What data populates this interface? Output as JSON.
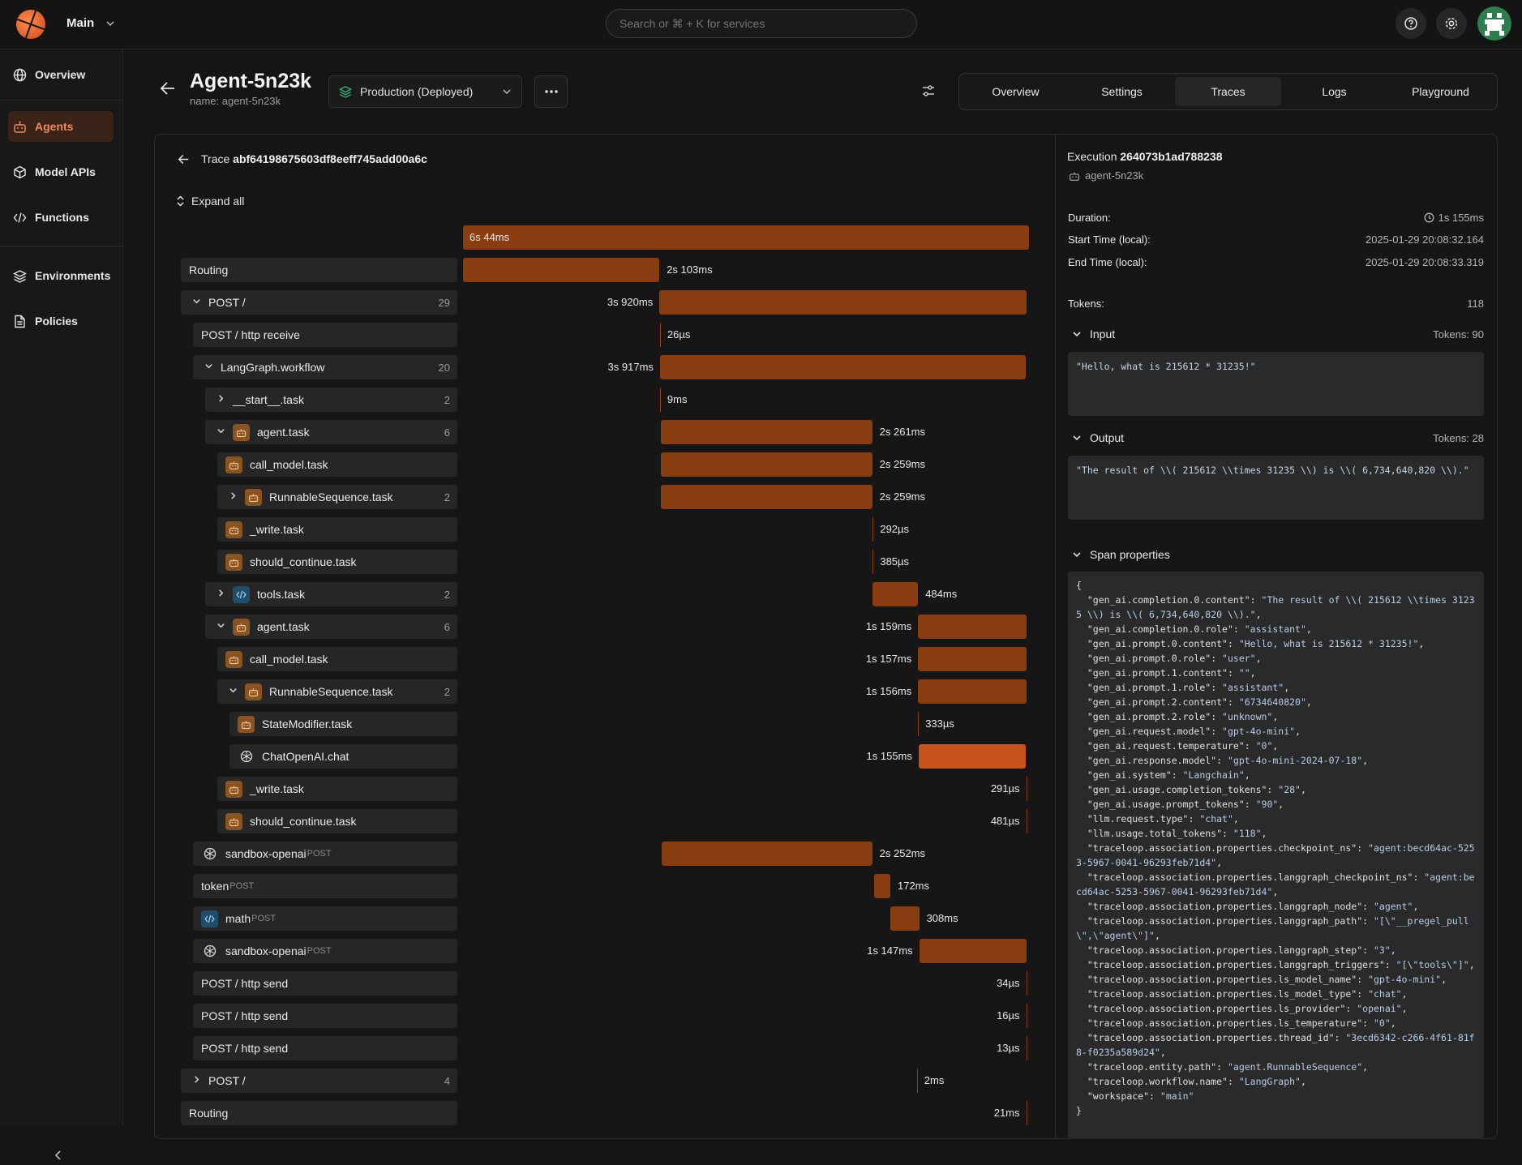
{
  "topbar": {
    "workspace": "Main",
    "search_placeholder": "Search or ⌘ + K for services"
  },
  "sidebar": {
    "items": [
      {
        "label": "Overview",
        "icon": "globe-icon"
      },
      {
        "label": "Agents",
        "icon": "robot-icon",
        "active": true
      },
      {
        "label": "Model APIs",
        "icon": "cube-icon"
      },
      {
        "label": "Functions",
        "icon": "code-icon"
      },
      {
        "label": "Environments",
        "icon": "layers-icon"
      },
      {
        "label": "Policies",
        "icon": "document-icon"
      }
    ]
  },
  "header": {
    "title": "Agent-5n23k",
    "subtitle": "name: agent-5n23k",
    "environment": "Production (Deployed)",
    "tabs": [
      "Overview",
      "Settings",
      "Traces",
      "Logs",
      "Playground"
    ],
    "active_tab": "Traces"
  },
  "trace": {
    "label": "Trace",
    "id": "abf64198675603df8eeff745add00a6c",
    "expand_all": "Expand all",
    "total_duration": "6s 44ms",
    "spans": [
      {
        "name": "Routing",
        "depth": 0,
        "chev": "",
        "icon": "",
        "count": "",
        "duration": "2s 103ms",
        "start": 0.0,
        "end": 0.347
      },
      {
        "name": "POST /",
        "depth": 0,
        "chev": "down",
        "icon": "",
        "count": "29",
        "duration": "3s 920ms",
        "start": 0.347,
        "end": 0.995
      },
      {
        "name": "POST / http receive",
        "depth": 1,
        "chev": "",
        "icon": "",
        "count": "",
        "duration": "26µs",
        "start": 0.348,
        "end": 0.348
      },
      {
        "name": "LangGraph.workflow",
        "depth": 1,
        "chev": "down",
        "icon": "",
        "count": "20",
        "duration": "3s 917ms",
        "start": 0.348,
        "end": 0.995
      },
      {
        "name": "__start__.task",
        "depth": 2,
        "chev": "right",
        "icon": "",
        "count": "2",
        "duration": "9ms",
        "start": 0.348,
        "end": 0.348
      },
      {
        "name": "agent.task",
        "depth": 2,
        "chev": "down",
        "icon": "robot",
        "count": "6",
        "duration": "2s 261ms",
        "start": 0.349,
        "end": 0.723
      },
      {
        "name": "call_model.task",
        "depth": 3,
        "chev": "",
        "icon": "robot",
        "count": "",
        "duration": "2s 259ms",
        "start": 0.349,
        "end": 0.723
      },
      {
        "name": "RunnableSequence.task",
        "depth": 3,
        "chev": "right",
        "icon": "robot",
        "count": "2",
        "duration": "2s 259ms",
        "start": 0.349,
        "end": 0.723
      },
      {
        "name": "_write.task",
        "depth": 3,
        "chev": "",
        "icon": "robot",
        "count": "",
        "duration": "292µs",
        "start": 0.724,
        "end": 0.724
      },
      {
        "name": "should_continue.task",
        "depth": 3,
        "chev": "",
        "icon": "robot",
        "count": "",
        "duration": "385µs",
        "start": 0.724,
        "end": 0.724
      },
      {
        "name": "tools.task",
        "depth": 2,
        "chev": "right",
        "icon": "code",
        "count": "2",
        "duration": "484ms",
        "start": 0.724,
        "end": 0.804
      },
      {
        "name": "agent.task",
        "depth": 2,
        "chev": "down",
        "icon": "robot",
        "count": "6",
        "duration": "1s 159ms",
        "start": 0.804,
        "end": 0.995
      },
      {
        "name": "call_model.task",
        "depth": 3,
        "chev": "",
        "icon": "robot",
        "count": "",
        "duration": "1s 157ms",
        "start": 0.804,
        "end": 0.995
      },
      {
        "name": "RunnableSequence.task",
        "depth": 3,
        "chev": "down",
        "icon": "robot",
        "count": "2",
        "duration": "1s 156ms",
        "start": 0.804,
        "end": 0.995
      },
      {
        "name": "StateModifier.task",
        "depth": 4,
        "chev": "",
        "icon": "robot",
        "count": "",
        "duration": "333µs",
        "start": 0.804,
        "end": 0.804
      },
      {
        "name": "ChatOpenAI.chat",
        "depth": 4,
        "chev": "",
        "icon": "oai",
        "count": "",
        "duration": "1s 155ms",
        "start": 0.805,
        "end": 0.995,
        "selected": true
      },
      {
        "name": "_write.task",
        "depth": 3,
        "chev": "",
        "icon": "robot",
        "count": "",
        "duration": "291µs",
        "start": 0.995,
        "end": 0.995
      },
      {
        "name": "should_continue.task",
        "depth": 3,
        "chev": "",
        "icon": "robot",
        "count": "",
        "duration": "481µs",
        "start": 0.995,
        "end": 0.995
      },
      {
        "name": "sandbox-openai",
        "method": "POST",
        "depth": 1,
        "chev": "",
        "icon": "oai",
        "count": "",
        "duration": "2s 252ms",
        "start": 0.351,
        "end": 0.723
      },
      {
        "name": "token",
        "method": "POST",
        "depth": 1,
        "chev": "",
        "icon": "",
        "count": "",
        "duration": "172ms",
        "start": 0.727,
        "end": 0.755
      },
      {
        "name": "math",
        "method": "POST",
        "depth": 1,
        "chev": "",
        "icon": "code",
        "count": "",
        "duration": "308ms",
        "start": 0.755,
        "end": 0.806
      },
      {
        "name": "sandbox-openai",
        "method": "POST",
        "depth": 1,
        "chev": "",
        "icon": "oai",
        "count": "",
        "duration": "1s 147ms",
        "start": 0.806,
        "end": 0.995
      },
      {
        "name": "POST / http send",
        "depth": 1,
        "chev": "",
        "icon": "",
        "count": "",
        "duration": "34µs",
        "start": 0.995,
        "end": 0.995
      },
      {
        "name": "POST / http send",
        "depth": 1,
        "chev": "",
        "icon": "",
        "count": "",
        "duration": "16µs",
        "start": 0.995,
        "end": 0.995
      },
      {
        "name": "POST / http send",
        "depth": 1,
        "chev": "",
        "icon": "",
        "count": "",
        "duration": "13µs",
        "start": 0.995,
        "end": 0.995
      },
      {
        "name": "POST /",
        "depth": 0,
        "chev": "right",
        "icon": "",
        "count": "4",
        "duration": "2ms",
        "start": 0.802,
        "end": 0.802
      },
      {
        "name": "Routing",
        "depth": 0,
        "chev": "",
        "icon": "",
        "count": "",
        "duration": "21ms",
        "start": 0.995,
        "end": 0.995
      }
    ]
  },
  "execution": {
    "label": "Execution",
    "id": "264073b1ad788238",
    "agent": "agent-5n23k",
    "duration_label": "Duration:",
    "duration": "1s 155ms",
    "start_label": "Start Time (local):",
    "start": "2025-01-29 20:08:32.164",
    "end_label": "End Time (local):",
    "end": "2025-01-29 20:08:33.319",
    "tokens_label": "Tokens:",
    "tokens": "118",
    "input_label": "Input",
    "input_tokens": "Tokens: 90",
    "input_text": "\"Hello, what is 215612 * 31235!\"",
    "output_label": "Output",
    "output_tokens": "Tokens: 28",
    "output_text": "\"The result of \\\\( 215612 \\\\times 31235 \\\\) is \\\\( 6,734,640,820 \\\\).\"",
    "span_props_label": "Span properties",
    "props_open": "{",
    "props_close": "}",
    "props": [
      [
        "gen_ai.completion.0.content",
        "The result of \\\\( 215612 \\\\times 31235 \\\\) is \\\\( 6,734,640,820 \\\\)."
      ],
      [
        "gen_ai.completion.0.role",
        "assistant"
      ],
      [
        "gen_ai.prompt.0.content",
        "Hello, what is 215612 * 31235!"
      ],
      [
        "gen_ai.prompt.0.role",
        "user"
      ],
      [
        "gen_ai.prompt.1.content",
        ""
      ],
      [
        "gen_ai.prompt.1.role",
        "assistant"
      ],
      [
        "gen_ai.prompt.2.content",
        "6734640820"
      ],
      [
        "gen_ai.prompt.2.role",
        "unknown"
      ],
      [
        "gen_ai.request.model",
        "gpt-4o-mini"
      ],
      [
        "gen_ai.request.temperature",
        "0"
      ],
      [
        "gen_ai.response.model",
        "gpt-4o-mini-2024-07-18"
      ],
      [
        "gen_ai.system",
        "Langchain"
      ],
      [
        "gen_ai.usage.completion_tokens",
        "28"
      ],
      [
        "gen_ai.usage.prompt_tokens",
        "90"
      ],
      [
        "llm.request.type",
        "chat"
      ],
      [
        "llm.usage.total_tokens",
        "118"
      ],
      [
        "traceloop.association.properties.checkpoint_ns",
        "agent:becd64ac-5253-5967-0041-96293feb71d4"
      ],
      [
        "traceloop.association.properties.langgraph_checkpoint_ns",
        "agent:becd64ac-5253-5967-0041-96293feb71d4"
      ],
      [
        "traceloop.association.properties.langgraph_node",
        "agent"
      ],
      [
        "traceloop.association.properties.langgraph_path",
        "[\\\"__pregel_pull\\\",\\\"agent\\\"]"
      ],
      [
        "traceloop.association.properties.langgraph_step",
        "3"
      ],
      [
        "traceloop.association.properties.langgraph_triggers",
        "[\\\"tools\\\"]"
      ],
      [
        "traceloop.association.properties.ls_model_name",
        "gpt-4o-mini"
      ],
      [
        "traceloop.association.properties.ls_model_type",
        "chat"
      ],
      [
        "traceloop.association.properties.ls_provider",
        "openai"
      ],
      [
        "traceloop.association.properties.ls_temperature",
        "0"
      ],
      [
        "traceloop.association.properties.thread_id",
        "3ecd6342-c266-4f61-81f8-f0235a589d24"
      ],
      [
        "traceloop.entity.path",
        "agent.RunnableSequence"
      ],
      [
        "traceloop.workflow.name",
        "LangGraph"
      ],
      [
        "workspace",
        "main"
      ]
    ]
  },
  "colors": {
    "accent": "#f08a5d",
    "bar": "#8b3d12",
    "bar_selected": "#c8541b"
  }
}
